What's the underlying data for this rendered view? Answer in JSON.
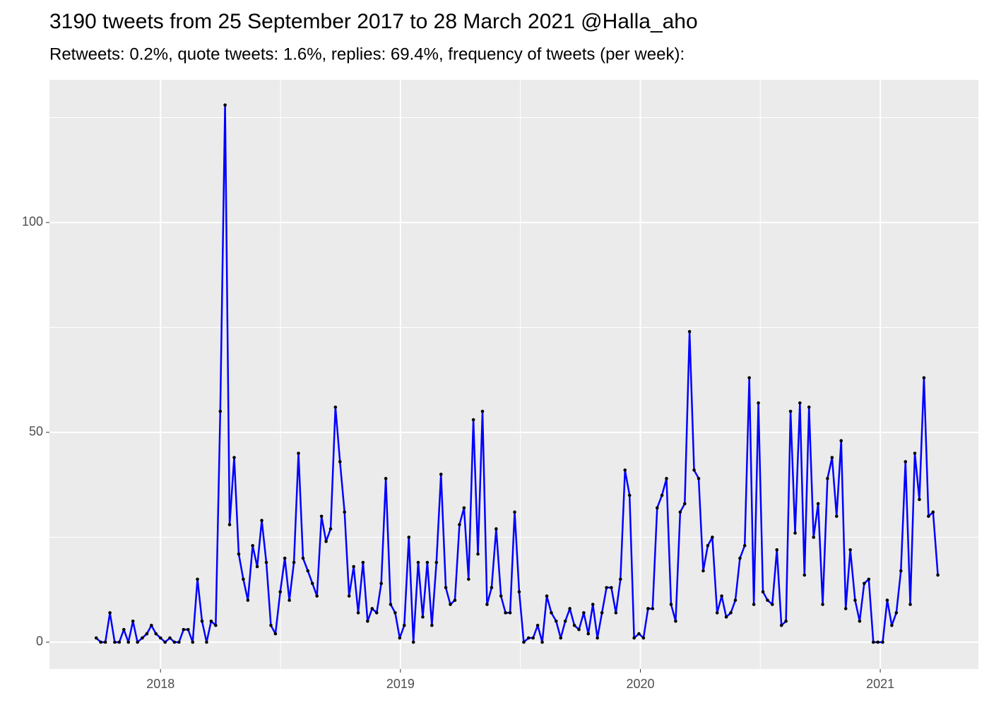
{
  "chart_data": {
    "type": "line",
    "title": "3190 tweets from 25 September 2017 to 28 March 2021 @Halla_aho",
    "subtitle": "Retweets: 0.2%, quote tweets: 1.6%, replies: 69.4%, frequency of tweets (per week):",
    "x": [
      2017.732,
      2017.751,
      2017.77,
      2017.789,
      2017.809,
      2017.828,
      2017.847,
      2017.866,
      2017.885,
      2017.904,
      2017.924,
      2017.943,
      2017.962,
      2017.981,
      2018.0,
      2018.019,
      2018.039,
      2018.058,
      2018.077,
      2018.096,
      2018.115,
      2018.134,
      2018.154,
      2018.173,
      2018.192,
      2018.211,
      2018.23,
      2018.249,
      2018.269,
      2018.288,
      2018.307,
      2018.326,
      2018.345,
      2018.364,
      2018.384,
      2018.403,
      2018.422,
      2018.441,
      2018.46,
      2018.479,
      2018.499,
      2018.518,
      2018.537,
      2018.556,
      2018.575,
      2018.594,
      2018.614,
      2018.633,
      2018.652,
      2018.671,
      2018.69,
      2018.709,
      2018.729,
      2018.748,
      2018.767,
      2018.786,
      2018.805,
      2018.824,
      2018.844,
      2018.863,
      2018.882,
      2018.901,
      2018.92,
      2018.939,
      2018.959,
      2018.978,
      2018.997,
      2019.016,
      2019.035,
      2019.054,
      2019.074,
      2019.093,
      2019.112,
      2019.131,
      2019.15,
      2019.169,
      2019.189,
      2019.208,
      2019.227,
      2019.246,
      2019.265,
      2019.284,
      2019.304,
      2019.323,
      2019.342,
      2019.361,
      2019.38,
      2019.399,
      2019.419,
      2019.438,
      2019.457,
      2019.476,
      2019.495,
      2019.514,
      2019.534,
      2019.553,
      2019.572,
      2019.591,
      2019.61,
      2019.629,
      2019.649,
      2019.668,
      2019.687,
      2019.706,
      2019.725,
      2019.744,
      2019.764,
      2019.783,
      2019.802,
      2019.821,
      2019.84,
      2019.859,
      2019.879,
      2019.898,
      2019.917,
      2019.936,
      2019.955,
      2019.974,
      2019.994,
      2020.013,
      2020.032,
      2020.051,
      2020.07,
      2020.09,
      2020.109,
      2020.128,
      2020.147,
      2020.166,
      2020.185,
      2020.205,
      2020.224,
      2020.243,
      2020.262,
      2020.281,
      2020.3,
      2020.32,
      2020.339,
      2020.358,
      2020.377,
      2020.396,
      2020.415,
      2020.435,
      2020.454,
      2020.473,
      2020.492,
      2020.511,
      2020.53,
      2020.55,
      2020.569,
      2020.588,
      2020.607,
      2020.626,
      2020.645,
      2020.665,
      2020.684,
      2020.703,
      2020.722,
      2020.741,
      2020.76,
      2020.78,
      2020.799,
      2020.818,
      2020.837,
      2020.856,
      2020.875,
      2020.895,
      2020.914,
      2020.933,
      2020.952,
      2020.971,
      2020.99,
      2021.01,
      2021.029,
      2021.048,
      2021.067,
      2021.086,
      2021.105,
      2021.125,
      2021.144,
      2021.163,
      2021.182,
      2021.201,
      2021.22,
      2021.24
    ],
    "values": [
      1,
      0,
      0,
      7,
      0,
      0,
      3,
      0,
      5,
      0,
      1,
      2,
      4,
      2,
      1,
      0,
      1,
      0,
      0,
      3,
      3,
      0,
      15,
      5,
      0,
      5,
      4,
      55,
      128,
      28,
      44,
      21,
      15,
      10,
      23,
      18,
      29,
      19,
      4,
      2,
      12,
      20,
      10,
      19,
      45,
      20,
      17,
      14,
      11,
      30,
      24,
      27,
      56,
      43,
      31,
      11,
      18,
      7,
      19,
      5,
      8,
      7,
      14,
      39,
      9,
      7,
      1,
      4,
      25,
      0,
      19,
      6,
      19,
      4,
      19,
      40,
      13,
      9,
      10,
      28,
      32,
      15,
      53,
      21,
      55,
      9,
      13,
      27,
      11,
      7,
      7,
      31,
      12,
      0,
      1,
      1,
      4,
      0,
      11,
      7,
      5,
      1,
      5,
      8,
      4,
      3,
      7,
      2,
      9,
      1,
      7,
      13,
      13,
      7,
      15,
      41,
      35,
      1,
      2,
      1,
      8,
      8,
      32,
      35,
      39,
      9,
      5,
      31,
      33,
      74,
      41,
      39,
      17,
      23,
      25,
      7,
      11,
      6,
      7,
      10,
      20,
      23,
      63,
      9,
      57,
      12,
      10,
      9,
      22,
      4,
      5,
      55,
      26,
      57,
      16,
      56,
      25,
      33,
      9,
      39,
      44,
      30,
      48,
      8,
      22,
      10,
      5,
      14,
      15,
      0,
      0,
      0,
      10,
      4,
      7,
      17,
      43,
      9,
      45,
      34,
      63,
      30,
      31,
      16
    ],
    "color": "#0000ff",
    "point_color": "#000000",
    "xlim": [
      2017.537,
      2021.409
    ],
    "xticks": [
      2018,
      2019,
      2020,
      2021
    ],
    "ylim": [
      -6.4,
      134
    ],
    "yticks": [
      0,
      50,
      100
    ],
    "x_minor_grid": [
      2018.5,
      2019.5,
      2020.5
    ],
    "y_minor_grid": [
      25,
      75,
      125
    ],
    "grid": true
  }
}
